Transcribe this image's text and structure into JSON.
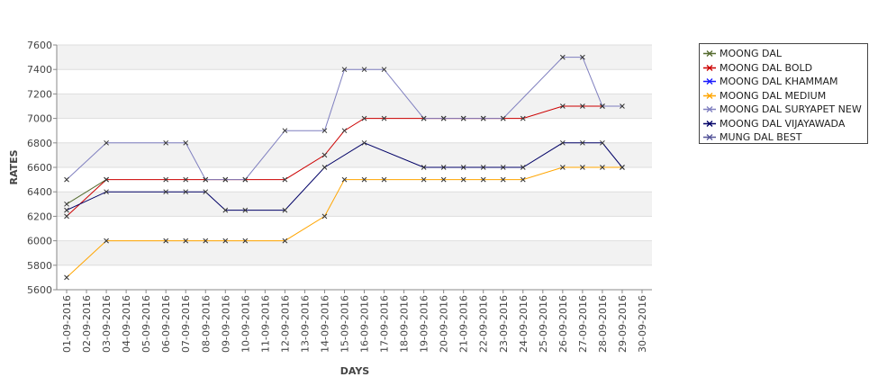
{
  "chart_data": {
    "type": "line",
    "xlabel": "DAYS",
    "ylabel": "RATES",
    "ylim": [
      5600,
      7600
    ],
    "yticks": [
      5600,
      5800,
      6000,
      6200,
      6400,
      6600,
      6800,
      7000,
      7200,
      7400,
      7600
    ],
    "legend_position": "right",
    "grid": true,
    "categories": [
      "01-09-2016",
      "02-09-2016",
      "03-09-2016",
      "04-09-2016",
      "05-09-2016",
      "06-09-2016",
      "07-09-2016",
      "08-09-2016",
      "09-09-2016",
      "10-09-2016",
      "11-09-2016",
      "12-09-2016",
      "13-09-2016",
      "14-09-2016",
      "15-09-2016",
      "16-09-2016",
      "17-09-2016",
      "18-09-2016",
      "19-09-2016",
      "20-09-2016",
      "21-09-2016",
      "22-09-2016",
      "23-09-2016",
      "24-09-2016",
      "25-09-2016",
      "26-09-2016",
      "27-09-2016",
      "28-09-2016",
      "29-09-2016",
      "30-09-2016"
    ],
    "series": [
      {
        "name": "MOONG DAL",
        "color": "#556b2f",
        "points": [
          [
            "01-09-2016",
            6300
          ],
          [
            "03-09-2016",
            6500
          ]
        ]
      },
      {
        "name": "MOONG DAL BOLD",
        "color": "#cc0000",
        "points": [
          [
            "01-09-2016",
            6200
          ],
          [
            "03-09-2016",
            6500
          ],
          [
            "06-09-2016",
            6500
          ],
          [
            "07-09-2016",
            6500
          ],
          [
            "08-09-2016",
            6500
          ],
          [
            "09-09-2016",
            6500
          ],
          [
            "10-09-2016",
            6500
          ],
          [
            "12-09-2016",
            6500
          ],
          [
            "14-09-2016",
            6700
          ],
          [
            "15-09-2016",
            6900
          ],
          [
            "16-09-2016",
            7000
          ],
          [
            "17-09-2016",
            7000
          ],
          [
            "19-09-2016",
            7000
          ],
          [
            "20-09-2016",
            7000
          ],
          [
            "21-09-2016",
            7000
          ],
          [
            "22-09-2016",
            7000
          ],
          [
            "23-09-2016",
            7000
          ],
          [
            "24-09-2016",
            7000
          ],
          [
            "26-09-2016",
            7100
          ],
          [
            "27-09-2016",
            7100
          ],
          [
            "28-09-2016",
            7100
          ]
        ]
      },
      {
        "name": "MOONG DAL KHAMMAM",
        "color": "#1a1aff",
        "points": []
      },
      {
        "name": "MOONG DAL MEDIUM",
        "color": "#ffa500",
        "points": [
          [
            "01-09-2016",
            5700
          ],
          [
            "03-09-2016",
            6000
          ],
          [
            "06-09-2016",
            6000
          ],
          [
            "07-09-2016",
            6000
          ],
          [
            "08-09-2016",
            6000
          ],
          [
            "09-09-2016",
            6000
          ],
          [
            "10-09-2016",
            6000
          ],
          [
            "12-09-2016",
            6000
          ],
          [
            "14-09-2016",
            6200
          ],
          [
            "15-09-2016",
            6500
          ],
          [
            "16-09-2016",
            6500
          ],
          [
            "17-09-2016",
            6500
          ],
          [
            "19-09-2016",
            6500
          ],
          [
            "20-09-2016",
            6500
          ],
          [
            "21-09-2016",
            6500
          ],
          [
            "22-09-2016",
            6500
          ],
          [
            "23-09-2016",
            6500
          ],
          [
            "24-09-2016",
            6500
          ],
          [
            "26-09-2016",
            6600
          ],
          [
            "27-09-2016",
            6600
          ],
          [
            "28-09-2016",
            6600
          ],
          [
            "29-09-2016",
            6600
          ]
        ]
      },
      {
        "name": "MOONG DAL SURYAPET NEW",
        "color": "#7f7fbf",
        "points": [
          [
            "01-09-2016",
            6500
          ],
          [
            "03-09-2016",
            6800
          ],
          [
            "06-09-2016",
            6800
          ],
          [
            "07-09-2016",
            6800
          ],
          [
            "08-09-2016",
            6500
          ],
          [
            "09-09-2016",
            6500
          ],
          [
            "10-09-2016",
            6500
          ],
          [
            "12-09-2016",
            6900
          ],
          [
            "14-09-2016",
            6900
          ],
          [
            "15-09-2016",
            7400
          ],
          [
            "16-09-2016",
            7400
          ],
          [
            "17-09-2016",
            7400
          ],
          [
            "19-09-2016",
            7000
          ],
          [
            "20-09-2016",
            7000
          ],
          [
            "21-09-2016",
            7000
          ],
          [
            "22-09-2016",
            7000
          ],
          [
            "23-09-2016",
            7000
          ],
          [
            "26-09-2016",
            7500
          ],
          [
            "27-09-2016",
            7500
          ],
          [
            "28-09-2016",
            7100
          ],
          [
            "29-09-2016",
            7100
          ]
        ]
      },
      {
        "name": "MOONG DAL VIJAYAWADA",
        "color": "#000066",
        "points": [
          [
            "01-09-2016",
            6250
          ],
          [
            "03-09-2016",
            6400
          ],
          [
            "06-09-2016",
            6400
          ],
          [
            "07-09-2016",
            6400
          ],
          [
            "08-09-2016",
            6400
          ],
          [
            "09-09-2016",
            6250
          ],
          [
            "10-09-2016",
            6250
          ],
          [
            "12-09-2016",
            6250
          ],
          [
            "14-09-2016",
            6600
          ],
          [
            "16-09-2016",
            6800
          ],
          [
            "19-09-2016",
            6600
          ],
          [
            "20-09-2016",
            6600
          ],
          [
            "21-09-2016",
            6600
          ],
          [
            "22-09-2016",
            6600
          ],
          [
            "23-09-2016",
            6600
          ],
          [
            "24-09-2016",
            6600
          ],
          [
            "26-09-2016",
            6800
          ],
          [
            "27-09-2016",
            6800
          ],
          [
            "28-09-2016",
            6800
          ],
          [
            "29-09-2016",
            6600
          ]
        ]
      },
      {
        "name": "MUNG DAL BEST",
        "color": "#555599",
        "points": []
      }
    ]
  }
}
